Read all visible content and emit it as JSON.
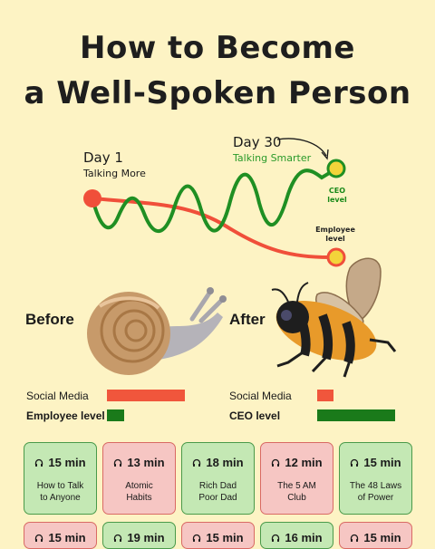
{
  "title": {
    "line1": "How to Become",
    "line2": "a Well-Spoken Person"
  },
  "journey": {
    "start": {
      "day": "Day 1",
      "caption": "Talking More"
    },
    "end": {
      "day": "Day 30",
      "caption": "Talking Smarter"
    },
    "ceo_level_label": "CEO\nlevel",
    "employee_level_label": "Employee\nlevel",
    "colors": {
      "green": "#1f8f23",
      "red": "#f04f3a",
      "yellow": "#f3d43a"
    }
  },
  "comparison": {
    "before_label": "Before",
    "after_label": "After",
    "before": {
      "metrics": [
        {
          "label": "Social Media",
          "level": 0.9,
          "color": "#f0563c"
        },
        {
          "label": "Employee level",
          "level": 0.2,
          "color": "#1a7a1a"
        }
      ]
    },
    "after": {
      "metrics": [
        {
          "label": "Social Media",
          "level": 0.2,
          "color": "#f0563c"
        },
        {
          "label": "CEO level",
          "level": 0.95,
          "color": "#1a7a1a"
        }
      ]
    }
  },
  "cards": [
    {
      "time": "15 min",
      "book": "How to Talk\nto Anyone",
      "color": "green"
    },
    {
      "time": "13 min",
      "book": "Atomic\nHabits",
      "color": "pink"
    },
    {
      "time": "18 min",
      "book": "Rich Dad\nPoor Dad",
      "color": "green"
    },
    {
      "time": "12 min",
      "book": "The 5 AM\nClub",
      "color": "pink"
    },
    {
      "time": "15 min",
      "book": "The 48 Laws\nof Power",
      "color": "green"
    },
    {
      "time": "15 min",
      "book": "",
      "color": "pink"
    },
    {
      "time": "19 min",
      "book": "",
      "color": "green"
    },
    {
      "time": "15 min",
      "book": "",
      "color": "pink"
    },
    {
      "time": "16 min",
      "book": "",
      "color": "green"
    },
    {
      "time": "15 min",
      "book": "",
      "color": "pink"
    }
  ]
}
